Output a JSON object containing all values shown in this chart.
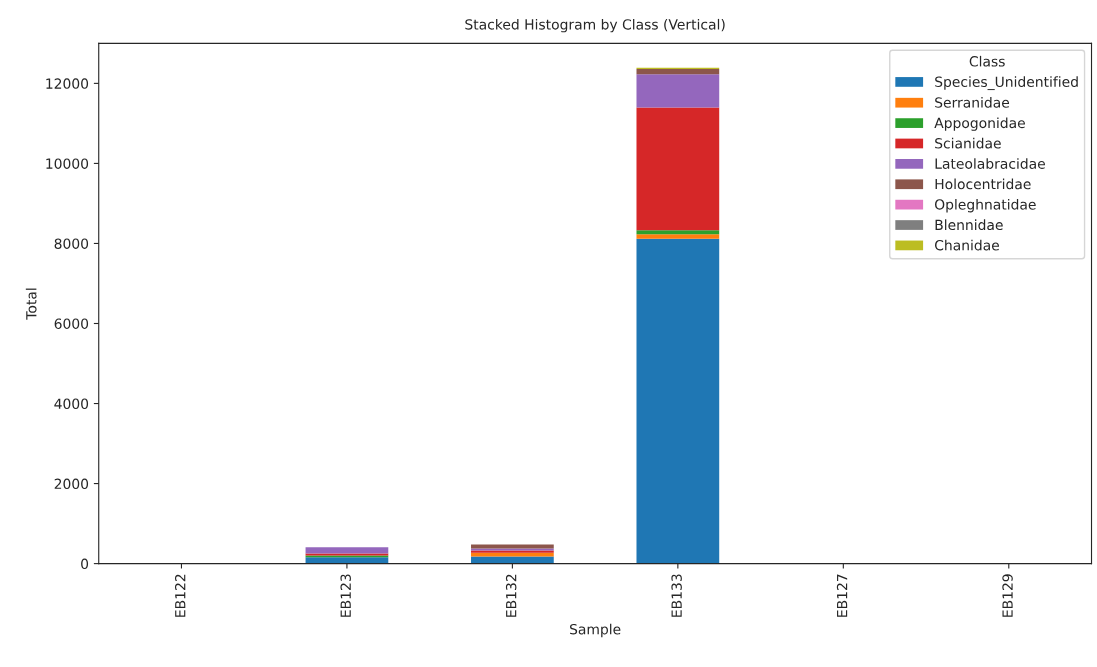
{
  "chart_data": {
    "type": "bar",
    "stacked": true,
    "title": "Stacked Histogram by Class (Vertical)",
    "xlabel": "Sample",
    "ylabel": "Total",
    "categories": [
      "EB122",
      "EB123",
      "EB132",
      "EB133",
      "EB127",
      "EB129"
    ],
    "series": [
      {
        "name": "Species_Unidentified",
        "color": "#1f77b4",
        "values": [
          0,
          160,
          180,
          8120,
          0,
          0
        ]
      },
      {
        "name": "Serranidae",
        "color": "#ff7f0e",
        "values": [
          0,
          0,
          90,
          110,
          0,
          0
        ]
      },
      {
        "name": "Appogonidae",
        "color": "#2ca02c",
        "values": [
          0,
          40,
          0,
          100,
          0,
          0
        ]
      },
      {
        "name": "Scianidae",
        "color": "#d62728",
        "values": [
          0,
          50,
          60,
          3070,
          0,
          0
        ]
      },
      {
        "name": "Lateolabracidae",
        "color": "#9467bd",
        "values": [
          0,
          160,
          50,
          830,
          0,
          0
        ]
      },
      {
        "name": "Holocentridae",
        "color": "#8c564b",
        "values": [
          0,
          0,
          100,
          130,
          0,
          0
        ]
      },
      {
        "name": "Opleghnatidae",
        "color": "#e377c2",
        "values": [
          0,
          0,
          0,
          0,
          0,
          0
        ]
      },
      {
        "name": "Blennidae",
        "color": "#7f7f7f",
        "values": [
          0,
          0,
          0,
          0,
          0,
          0
        ]
      },
      {
        "name": "Chanidae",
        "color": "#bcbd22",
        "values": [
          0,
          0,
          0,
          30,
          0,
          0
        ]
      }
    ],
    "ylim": [
      0,
      13000
    ],
    "yticks": [
      0,
      2000,
      4000,
      6000,
      8000,
      10000,
      12000
    ],
    "legend": "top right",
    "legend_title": "Class"
  }
}
